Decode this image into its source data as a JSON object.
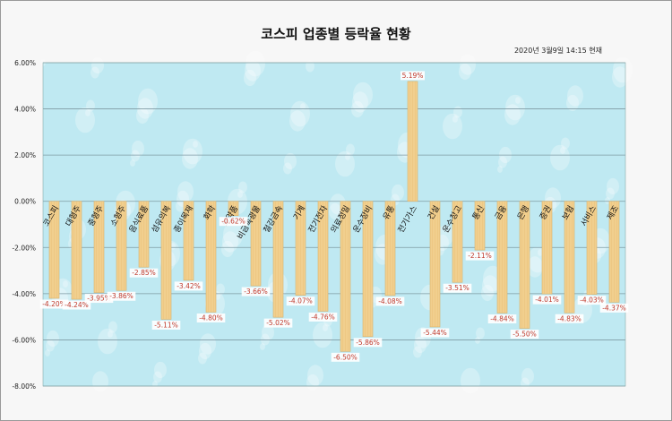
{
  "chart_data": {
    "type": "bar",
    "title": "코스피 업종별 등락율 현황",
    "subtitle": "2020년 3월9일 14:15 현재",
    "categories": [
      "코스피",
      "대형주",
      "중형주",
      "소형주",
      "음식료품",
      "섬유의복",
      "종이목재",
      "화학",
      "의약품",
      "비금속광물",
      "철강금속",
      "기계",
      "전기전자",
      "의료정밀",
      "운수장비",
      "유통",
      "전기가스",
      "건설",
      "운수창고",
      "통신",
      "금융",
      "은행",
      "증권",
      "보험",
      "서비스",
      "제조"
    ],
    "values": [
      -4.2,
      -4.24,
      -3.95,
      -3.86,
      -2.85,
      -5.11,
      -3.42,
      -4.8,
      -0.62,
      -3.66,
      -5.02,
      -4.07,
      -4.76,
      -6.5,
      -5.86,
      -4.08,
      5.19,
      -5.44,
      -3.51,
      -2.11,
      -4.84,
      -5.5,
      -4.01,
      -4.83,
      -4.03,
      -4.37
    ],
    "data_labels": [
      "-4.20%",
      "-4.24%",
      "-3.95%",
      "-3.86%",
      "-2.85%",
      "-5.11%",
      "-3.42%",
      "-4.80%",
      "-0.62%",
      "-3.66%",
      "-5.02%",
      "-4.07%",
      "-4.76%",
      "-6.50%",
      "-5.86%",
      "-4.08%",
      "5.19%",
      "-5.44%",
      "-3.51%",
      "-2.11%",
      "-4.84%",
      "-5.50%",
      "-4.01%",
      "-4.83%",
      "-4.03%",
      "-4.37%"
    ],
    "yticks": [
      "6.00%",
      "4.00%",
      "2.00%",
      "0.00%",
      "-2.00%",
      "-4.00%",
      "-6.00%",
      "-8.00%"
    ],
    "ylim": [
      -8,
      6
    ],
    "grid": true,
    "colors": {
      "bar": "#f1cf8e",
      "bar_edge": "#d9b06a",
      "plot_bg": "#bfe9f2",
      "grid": "#7f9aa3",
      "label": "#c0392b"
    }
  }
}
